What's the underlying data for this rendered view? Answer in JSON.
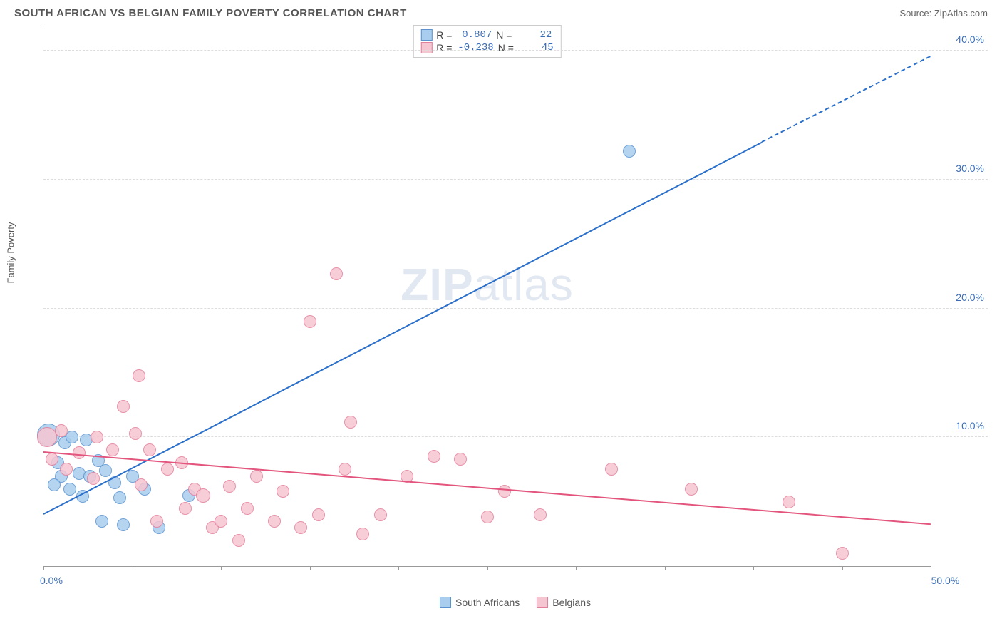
{
  "header": {
    "title": "SOUTH AFRICAN VS BELGIAN FAMILY POVERTY CORRELATION CHART",
    "source_prefix": "Source: ",
    "source_name": "ZipAtlas.com"
  },
  "watermark": "ZIPatlas",
  "chart": {
    "type": "scatter",
    "ylabel": "Family Poverty",
    "xlim": [
      0,
      50
    ],
    "ylim": [
      0,
      42
    ],
    "x_tick_positions": [
      0,
      5,
      10,
      15,
      20,
      25,
      30,
      35,
      40,
      45,
      50
    ],
    "x_tick_labels": {
      "0": "0.0%",
      "50": "50.0%"
    },
    "y_ticks": [
      10,
      20,
      30,
      40
    ],
    "y_tick_labels": [
      "10.0%",
      "20.0%",
      "30.0%",
      "40.0%"
    ],
    "background_color": "#ffffff",
    "grid_color": "#dddddd",
    "axis_color": "#999999",
    "tick_label_color": "#3b6db5",
    "series": [
      {
        "name": "South Africans",
        "fill": "#a9cdee",
        "stroke": "#5a93cf",
        "stroke_width": 1,
        "point_radius": 9,
        "trend": {
          "x1": 0,
          "y1": 4.0,
          "x2": 40,
          "y2": 32.5,
          "solid_until_x": 40.5,
          "dashed_to_x": 50,
          "dashed_y2": 39.5,
          "color": "#2a6fc9",
          "width": 2
        },
        "stats": {
          "R": "0.807",
          "N": "22"
        },
        "points": [
          {
            "x": 0.3,
            "y": 10.2,
            "r": 16
          },
          {
            "x": 1.2,
            "y": 9.6,
            "r": 9
          },
          {
            "x": 1.6,
            "y": 10.0,
            "r": 9
          },
          {
            "x": 2.4,
            "y": 9.8,
            "r": 9
          },
          {
            "x": 0.8,
            "y": 8.0,
            "r": 9
          },
          {
            "x": 1.0,
            "y": 7.0,
            "r": 9
          },
          {
            "x": 2.0,
            "y": 7.2,
            "r": 9
          },
          {
            "x": 2.6,
            "y": 7.0,
            "r": 9
          },
          {
            "x": 3.1,
            "y": 8.2,
            "r": 9
          },
          {
            "x": 3.5,
            "y": 7.4,
            "r": 9
          },
          {
            "x": 0.6,
            "y": 6.3,
            "r": 9
          },
          {
            "x": 1.5,
            "y": 6.0,
            "r": 9
          },
          {
            "x": 2.2,
            "y": 5.4,
            "r": 9
          },
          {
            "x": 4.0,
            "y": 6.5,
            "r": 9
          },
          {
            "x": 4.3,
            "y": 5.3,
            "r": 9
          },
          {
            "x": 5.0,
            "y": 7.0,
            "r": 9
          },
          {
            "x": 5.7,
            "y": 6.0,
            "r": 9
          },
          {
            "x": 3.3,
            "y": 3.5,
            "r": 9
          },
          {
            "x": 4.5,
            "y": 3.2,
            "r": 9
          },
          {
            "x": 6.5,
            "y": 3.0,
            "r": 9
          },
          {
            "x": 8.2,
            "y": 5.5,
            "r": 9
          },
          {
            "x": 33.0,
            "y": 32.2,
            "r": 9
          }
        ]
      },
      {
        "name": "Belgians",
        "fill": "#f6c5d2",
        "stroke": "#e37f9b",
        "stroke_width": 1,
        "point_radius": 9,
        "trend": {
          "x1": 0,
          "y1": 8.8,
          "x2": 50,
          "y2": 3.2,
          "color": "#e3557d",
          "width": 2
        },
        "stats": {
          "R": "-0.238",
          "N": "45"
        },
        "points": [
          {
            "x": 0.2,
            "y": 10.0,
            "r": 14
          },
          {
            "x": 0.5,
            "y": 8.3,
            "r": 9
          },
          {
            "x": 1.0,
            "y": 10.5,
            "r": 9
          },
          {
            "x": 1.3,
            "y": 7.5,
            "r": 9
          },
          {
            "x": 2.0,
            "y": 8.8,
            "r": 9
          },
          {
            "x": 2.8,
            "y": 6.8,
            "r": 9
          },
          {
            "x": 3.0,
            "y": 10.0,
            "r": 9
          },
          {
            "x": 3.9,
            "y": 9.0,
            "r": 9
          },
          {
            "x": 4.5,
            "y": 12.4,
            "r": 9
          },
          {
            "x": 5.2,
            "y": 10.3,
            "r": 9
          },
          {
            "x": 5.4,
            "y": 14.8,
            "r": 9
          },
          {
            "x": 5.5,
            "y": 6.3,
            "r": 9
          },
          {
            "x": 6.0,
            "y": 9.0,
            "r": 9
          },
          {
            "x": 6.4,
            "y": 3.5,
            "r": 9
          },
          {
            "x": 7.0,
            "y": 7.5,
            "r": 9
          },
          {
            "x": 7.8,
            "y": 8.0,
            "r": 9
          },
          {
            "x": 8.0,
            "y": 4.5,
            "r": 9
          },
          {
            "x": 8.5,
            "y": 6.0,
            "r": 9
          },
          {
            "x": 9.0,
            "y": 5.5,
            "r": 10
          },
          {
            "x": 9.5,
            "y": 3.0,
            "r": 9
          },
          {
            "x": 10.0,
            "y": 3.5,
            "r": 9
          },
          {
            "x": 10.5,
            "y": 6.2,
            "r": 9
          },
          {
            "x": 11.0,
            "y": 2.0,
            "r": 9
          },
          {
            "x": 11.5,
            "y": 4.5,
            "r": 9
          },
          {
            "x": 12.0,
            "y": 7.0,
            "r": 9
          },
          {
            "x": 13.0,
            "y": 3.5,
            "r": 9
          },
          {
            "x": 13.5,
            "y": 5.8,
            "r": 9
          },
          {
            "x": 14.5,
            "y": 3.0,
            "r": 9
          },
          {
            "x": 15.0,
            "y": 19.0,
            "r": 9
          },
          {
            "x": 15.5,
            "y": 4.0,
            "r": 9
          },
          {
            "x": 16.5,
            "y": 22.7,
            "r": 9
          },
          {
            "x": 17.0,
            "y": 7.5,
            "r": 9
          },
          {
            "x": 17.3,
            "y": 11.2,
            "r": 9
          },
          {
            "x": 18.0,
            "y": 2.5,
            "r": 9
          },
          {
            "x": 19.0,
            "y": 4.0,
            "r": 9
          },
          {
            "x": 20.5,
            "y": 7.0,
            "r": 9
          },
          {
            "x": 22.0,
            "y": 8.5,
            "r": 9
          },
          {
            "x": 23.5,
            "y": 8.3,
            "r": 9
          },
          {
            "x": 25.0,
            "y": 3.8,
            "r": 9
          },
          {
            "x": 26.0,
            "y": 5.8,
            "r": 9
          },
          {
            "x": 28.0,
            "y": 4.0,
            "r": 9
          },
          {
            "x": 32.0,
            "y": 7.5,
            "r": 9
          },
          {
            "x": 36.5,
            "y": 6.0,
            "r": 9
          },
          {
            "x": 42.0,
            "y": 5.0,
            "r": 9
          },
          {
            "x": 45.0,
            "y": 1.0,
            "r": 9
          }
        ]
      }
    ]
  },
  "stats_box": {
    "R_label": "R =",
    "N_label": "N ="
  }
}
